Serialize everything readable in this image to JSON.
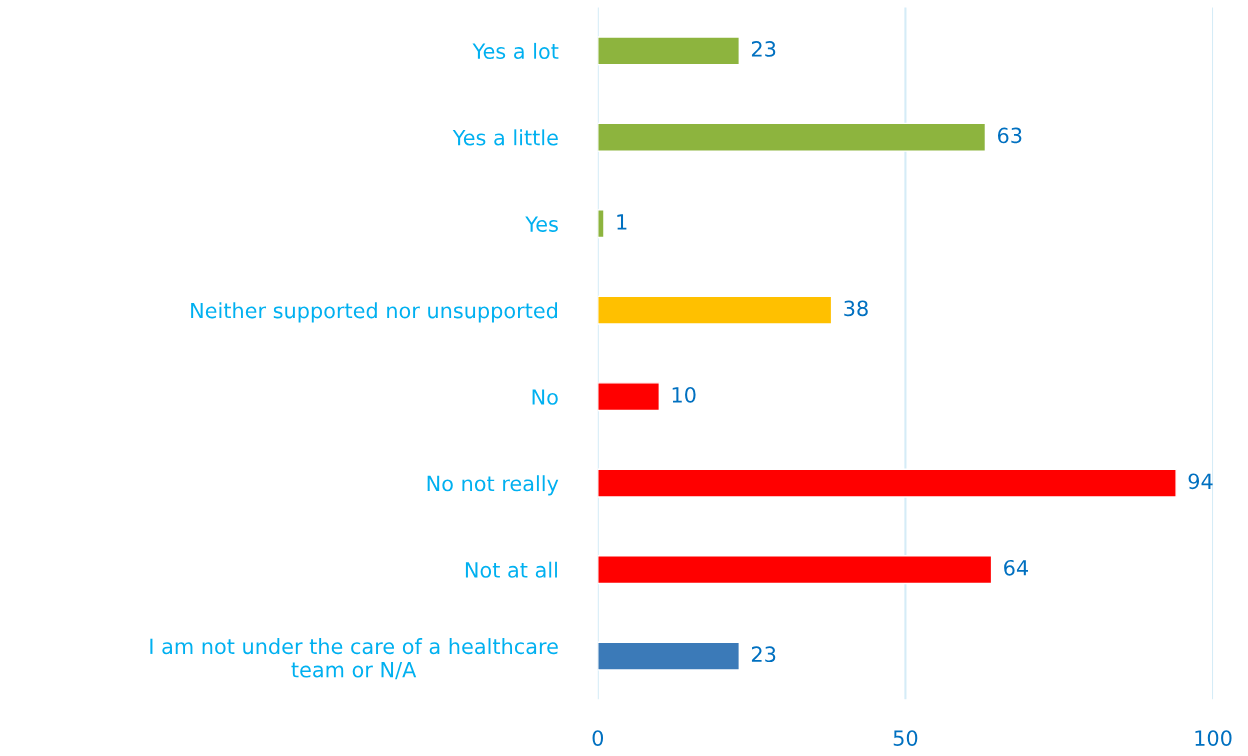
{
  "chart_data": {
    "type": "bar",
    "orientation": "horizontal",
    "categories": [
      "Yes a lot",
      "Yes a little",
      "Yes",
      "Neither supported nor unsupported",
      "No",
      "No not really",
      "Not at all",
      "I am not under the care of a healthcare\nteam or N/A"
    ],
    "values": [
      23,
      63,
      1,
      38,
      10,
      94,
      64,
      23
    ],
    "colors": [
      "#8db43e",
      "#8db43e",
      "#8db43e",
      "#ffc000",
      "#ff0000",
      "#ff0000",
      "#ff0000",
      "#3b7ab8"
    ],
    "xlim": [
      0,
      100
    ],
    "xticks": [
      0,
      50,
      100
    ],
    "grid": "x",
    "data_labels": true
  }
}
